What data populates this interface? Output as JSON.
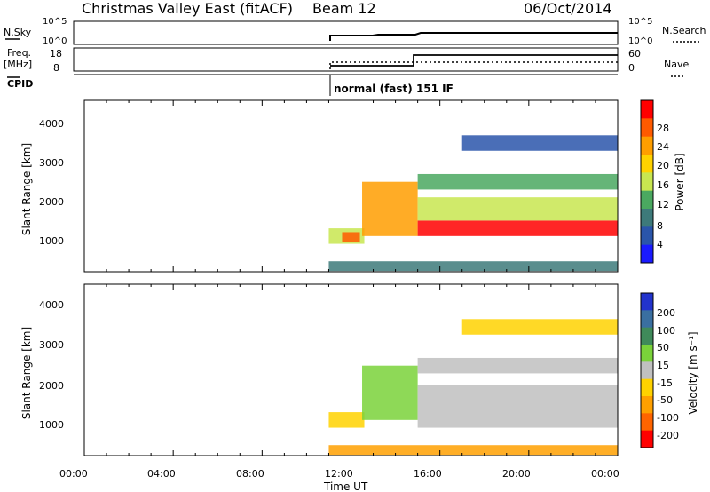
{
  "header": {
    "title": "Christmas Valley East (fitACF)",
    "beam": "Beam 12",
    "date": "06/Oct/2014"
  },
  "panels": {
    "nsky": {
      "label": "N.Sky",
      "ticks": [
        "10^5",
        "10^0"
      ]
    },
    "nsearch": {
      "label": "N.Search",
      "ticks": [
        "10^5",
        "10^0"
      ]
    },
    "freq": {
      "label_line1": "Freq.",
      "label_line2": "[MHz]",
      "ticks": [
        "18",
        "8"
      ]
    },
    "nave": {
      "label": "Nave",
      "ticks": [
        "60",
        "0"
      ]
    },
    "cpid": {
      "label": "CPID",
      "mode": "normal (fast) 151 IF"
    }
  },
  "colorbars": {
    "power": {
      "label": "Power [dB]",
      "ticks": [
        "28",
        "24",
        "20",
        "16",
        "12",
        "8",
        "4"
      ],
      "colors": [
        "#ff0000",
        "#ff5a00",
        "#ff9e00",
        "#ffd200",
        "#c8e650",
        "#4aa860",
        "#3d7a7a",
        "#2a55aa",
        "#1a1aff"
      ]
    },
    "velocity": {
      "label": "Velocity [m s⁻¹]",
      "ticks": [
        "200",
        "100",
        "50",
        "15",
        "-15",
        "-50",
        "-100",
        "-200"
      ],
      "colors": [
        "#2233cc",
        "#3a6fa0",
        "#3f8a5a",
        "#7ad23a",
        "#c0c0c0",
        "#ffd200",
        "#ffa000",
        "#ff6400",
        "#ff0000"
      ]
    }
  },
  "axes": {
    "y_label": "Slant Range [km]",
    "x_label": "Time UT",
    "x_ticks": [
      "00:00",
      "04:00",
      "08:00",
      "12:00",
      "16:00",
      "20:00",
      "00:00"
    ],
    "y_ticks": [
      "4000",
      "3000",
      "2000",
      "1000"
    ]
  },
  "chart_data": [
    {
      "type": "heatmap",
      "title": "",
      "ylabel": "Slant Range [km]",
      "xlabel": "",
      "x_range_hours": [
        0,
        24
      ],
      "ylim": [
        180,
        4600
      ],
      "colorbar": "Power [dB]",
      "color_range": [
        0,
        30
      ],
      "regions": [
        {
          "t0": 11.0,
          "t1": 24.0,
          "r0": 200,
          "r1": 450,
          "value": 8
        },
        {
          "t0": 11.0,
          "t1": 12.6,
          "r0": 900,
          "r1": 1300,
          "value": 14
        },
        {
          "t0": 11.6,
          "t1": 12.4,
          "r0": 950,
          "r1": 1200,
          "value": 24
        },
        {
          "t0": 12.5,
          "t1": 15.0,
          "r0": 1100,
          "r1": 2500,
          "value": 20
        },
        {
          "t0": 15.0,
          "t1": 24.0,
          "r0": 1100,
          "r1": 1500,
          "value": 28
        },
        {
          "t0": 15.0,
          "t1": 24.0,
          "r0": 1500,
          "r1": 2100,
          "value": 16
        },
        {
          "t0": 15.0,
          "t1": 24.0,
          "r0": 2300,
          "r1": 2700,
          "value": 12
        },
        {
          "t0": 17.0,
          "t1": 24.0,
          "r0": 3300,
          "r1": 3700,
          "value": 6
        }
      ]
    },
    {
      "type": "heatmap",
      "title": "",
      "ylabel": "Slant Range [km]",
      "xlabel": "Time UT",
      "x_range_hours": [
        0,
        24
      ],
      "ylim": [
        180,
        4600
      ],
      "colorbar": "Velocity [m s⁻¹]",
      "color_range": [
        -200,
        200
      ],
      "regions": [
        {
          "t0": 11.0,
          "t1": 24.0,
          "r0": 200,
          "r1": 450,
          "value": -70
        },
        {
          "t0": 11.0,
          "t1": 12.6,
          "r0": 900,
          "r1": 1300,
          "value": -40
        },
        {
          "t0": 12.5,
          "t1": 15.0,
          "r0": 1100,
          "r1": 2500,
          "value": 30
        },
        {
          "t0": 15.0,
          "t1": 24.0,
          "r0": 900,
          "r1": 2000,
          "value": 0
        },
        {
          "t0": 15.0,
          "t1": 24.0,
          "r0": 2300,
          "r1": 2700,
          "value": 0
        },
        {
          "t0": 17.0,
          "t1": 24.0,
          "r0": 3300,
          "r1": 3700,
          "value": -30
        }
      ]
    }
  ]
}
